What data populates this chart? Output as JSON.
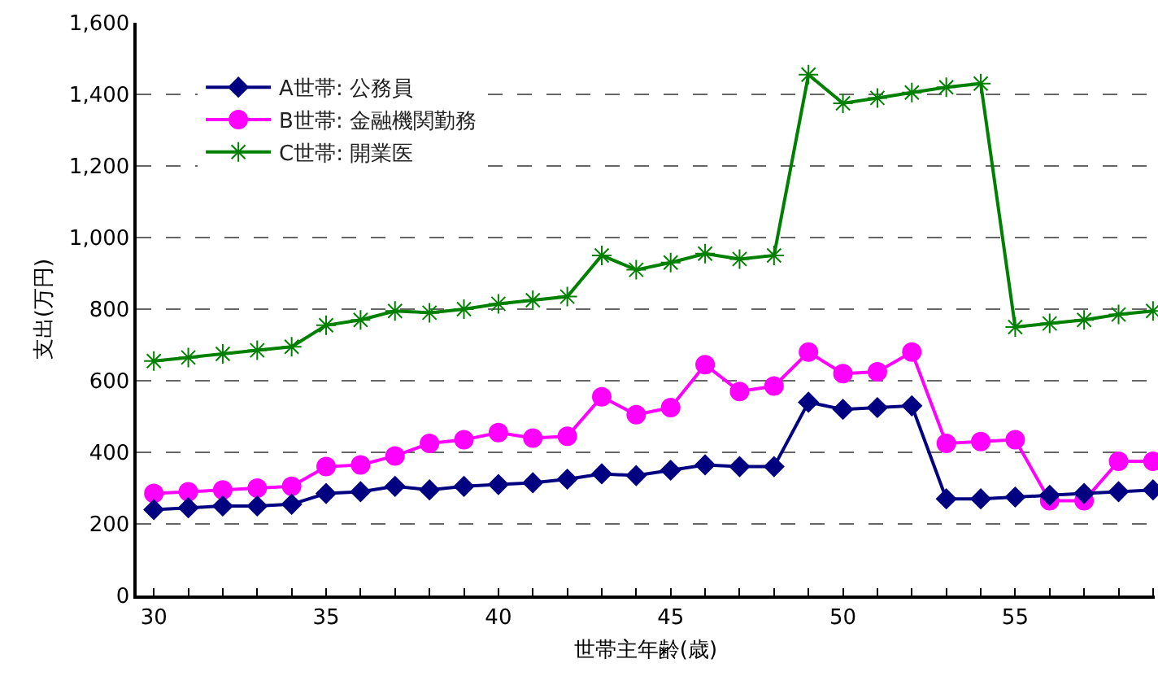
{
  "chart_data": {
    "type": "line",
    "xlabel": "世帯主年齢(歳)",
    "ylabel": "支出(万円)",
    "x": [
      30,
      31,
      32,
      33,
      34,
      35,
      36,
      37,
      38,
      39,
      40,
      41,
      42,
      43,
      44,
      45,
      46,
      47,
      48,
      49,
      50,
      51,
      52,
      53,
      54,
      55,
      56,
      57,
      58,
      59
    ],
    "series": [
      {
        "name": "A世帯: 公務員",
        "color": "#000080",
        "marker": "diamond",
        "values": [
          240,
          245,
          250,
          250,
          255,
          285,
          290,
          305,
          295,
          305,
          310,
          315,
          325,
          340,
          335,
          350,
          365,
          360,
          360,
          540,
          520,
          525,
          530,
          270,
          270,
          275,
          280,
          285,
          290,
          295
        ]
      },
      {
        "name": "B世帯: 金融機関勤務",
        "color": "#ff00ff",
        "marker": "circle",
        "values": [
          285,
          290,
          295,
          300,
          305,
          360,
          365,
          390,
          425,
          435,
          455,
          440,
          445,
          555,
          505,
          525,
          645,
          570,
          585,
          680,
          620,
          625,
          680,
          425,
          430,
          435,
          265,
          265,
          375,
          375
        ]
      },
      {
        "name": "C世帯: 開業医",
        "color": "#008000",
        "marker": "cross",
        "values": [
          655,
          665,
          675,
          685,
          695,
          755,
          770,
          795,
          790,
          800,
          815,
          825,
          835,
          950,
          910,
          930,
          955,
          940,
          950,
          1455,
          1375,
          1390,
          1405,
          1420,
          1430,
          750,
          760,
          770,
          785,
          795
        ]
      }
    ],
    "xlim": [
      29.5,
      59.05
    ],
    "xticks": [
      30,
      {
        "value": 31,
        "label": null
      },
      {
        "value": 32,
        "label": null
      },
      {
        "value": 33,
        "label": null
      },
      {
        "value": 34,
        "label": null
      },
      35,
      {
        "value": 36,
        "label": null
      },
      {
        "value": 37,
        "label": null
      },
      {
        "value": 38,
        "label": null
      },
      {
        "value": 39,
        "label": null
      },
      40,
      {
        "value": 41,
        "label": null
      },
      {
        "value": 42,
        "label": null
      },
      {
        "value": 43,
        "label": null
      },
      {
        "value": 44,
        "label": null
      },
      45,
      {
        "value": 46,
        "label": null
      },
      {
        "value": 47,
        "label": null
      },
      {
        "value": 48,
        "label": null
      },
      {
        "value": 49,
        "label": null
      },
      50,
      {
        "value": 51,
        "label": null
      },
      {
        "value": 52,
        "label": null
      },
      {
        "value": 53,
        "label": null
      },
      {
        "value": 54,
        "label": null
      },
      55,
      {
        "value": 56,
        "label": null
      },
      {
        "value": 57,
        "label": null
      },
      {
        "value": 58,
        "label": null
      },
      {
        "value": 59,
        "label": null
      }
    ],
    "ylim": [
      0,
      1600
    ],
    "yticks": [
      0,
      {
        "value": 200,
        "label": "200"
      },
      {
        "value": 400,
        "label": "400"
      },
      {
        "value": 600,
        "label": "600"
      },
      {
        "value": 800,
        "label": "800"
      },
      {
        "value": 1000,
        "label": "1,000"
      },
      {
        "value": 1200,
        "label": "1,200"
      },
      {
        "value": 1400,
        "label": "1,400"
      },
      {
        "value": 1600,
        "label": "1,600"
      }
    ],
    "grid": "y",
    "legend": "top left",
    "line_style": "solid"
  }
}
